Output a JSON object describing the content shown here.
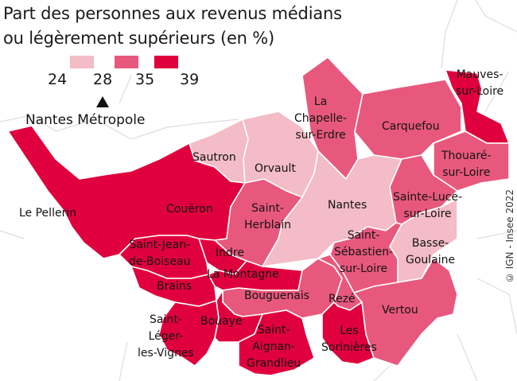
{
  "title": {
    "line1": "Part des personnes aux revenus médians",
    "line2": "ou légèrement supérieurs (en %)"
  },
  "legend": {
    "ticks": [
      "24",
      "28",
      "35",
      "39"
    ],
    "colors": [
      "#f3bcc6",
      "#e8587d",
      "#e0003d"
    ],
    "marker_value": "28",
    "marker_label": "Nantes Métropole"
  },
  "outside_labels": {
    "le_pellerin": "Le Pellerin"
  },
  "communes": {
    "mauves": {
      "label_lines": [
        "Mauves-",
        "sur-Loire"
      ],
      "class": 3
    },
    "chapelle": {
      "label_lines": [
        "La",
        "Chapelle-",
        "sur-Erdre"
      ],
      "class": 2
    },
    "carquefou": {
      "label_lines": [
        "Carquefou"
      ],
      "class": 2
    },
    "thouare": {
      "label_lines": [
        "Thouaré-",
        "sur-Loire"
      ],
      "class": 2
    },
    "sautron": {
      "label_lines": [
        "Sautron"
      ],
      "class": 1
    },
    "orvault": {
      "label_lines": [
        "Orvault"
      ],
      "class": 1
    },
    "nantes": {
      "label_lines": [
        "Nantes"
      ],
      "class": 1
    },
    "sainte_luce": {
      "label_lines": [
        "Sainte-Luce-",
        "sur-Loire"
      ],
      "class": 2
    },
    "coueron": {
      "label_lines": [
        "Couëron"
      ],
      "class": 3
    },
    "saint_herblain": {
      "label_lines": [
        "Saint-",
        "Herblain"
      ],
      "class": 2
    },
    "saint_sebastien": {
      "label_lines": [
        "Saint-",
        "Sébastien-",
        "sur-Loire"
      ],
      "class": 2
    },
    "basse_goulaine": {
      "label_lines": [
        "Basse-",
        "Goulaine"
      ],
      "class": 1
    },
    "indre": {
      "label_lines": [
        "Indre"
      ],
      "class": 3
    },
    "saint_jean": {
      "label_lines": [
        "Saint-Jean-",
        "de-Boiseau"
      ],
      "class": 3
    },
    "la_montagne": {
      "label_lines": [
        "La Montagne"
      ],
      "class": 3
    },
    "brains": {
      "label_lines": [
        "Brains"
      ],
      "class": 3
    },
    "bouguenais": {
      "label_lines": [
        "Bouguenais"
      ],
      "class": 2
    },
    "reze": {
      "label_lines": [
        "Rezé"
      ],
      "class": 2
    },
    "vertou": {
      "label_lines": [
        "Vertou"
      ],
      "class": 2
    },
    "saint_leger": {
      "label_lines": [
        "Saint-",
        "Léger-",
        "les-Vignes"
      ],
      "class": 3
    },
    "bouaye": {
      "label_lines": [
        "Bouaye"
      ],
      "class": 3
    },
    "saint_aignan": {
      "label_lines": [
        "Saint-",
        "Aignan-",
        "Grandlieu"
      ],
      "class": 3
    },
    "les_sorinieres": {
      "label_lines": [
        "Les",
        "Sorinières"
      ],
      "class": 3
    }
  },
  "credit": "© IGN - Insee 2022"
}
